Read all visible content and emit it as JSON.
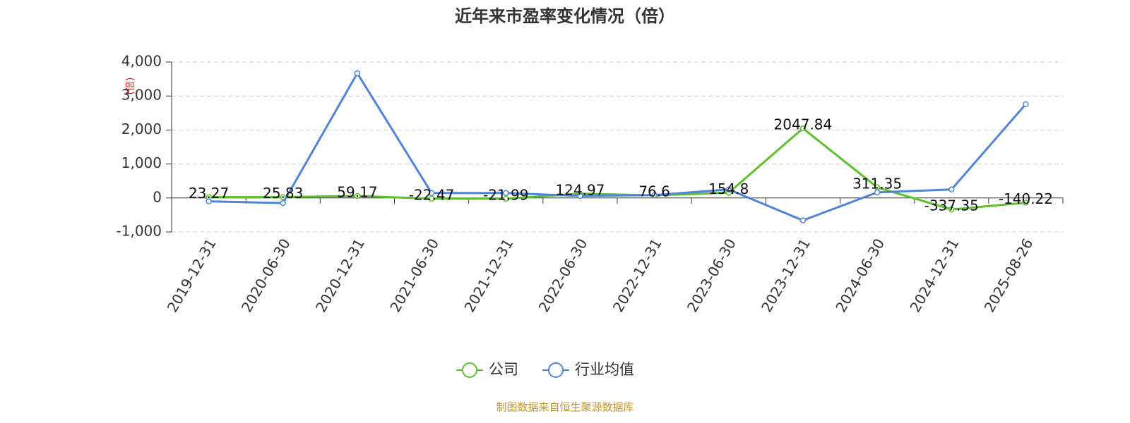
{
  "chart_data": {
    "type": "line",
    "title": "近年来市盈率变化情况（倍）",
    "y_label": "(倍)",
    "source": "制图数据来自恒生聚源数据库",
    "categories": [
      "2019-12-31",
      "2020-06-30",
      "2020-12-31",
      "2021-06-30",
      "2021-12-31",
      "2022-06-30",
      "2022-12-31",
      "2023-06-30",
      "2023-12-31",
      "2024-06-30",
      "2024-12-31",
      "2025-08-26"
    ],
    "series": [
      {
        "name": "公司",
        "color": "#5cc12a",
        "values": [
          23.27,
          25.83,
          59.17,
          -22.47,
          -21.99,
          124.97,
          76.6,
          154.8,
          2047.84,
          311.35,
          -337.35,
          -140.22
        ],
        "show_labels": true
      },
      {
        "name": "行业均值",
        "color": "#4f84dc",
        "values": [
          -100,
          -150,
          3670,
          145,
          145,
          60,
          85,
          250,
          -660,
          165,
          250,
          2760
        ],
        "show_labels": false
      }
    ],
    "ylim": [
      -1000,
      4000
    ],
    "yticks": [
      {
        "value": -1000,
        "label": "-1,000"
      },
      0,
      {
        "value": 1000,
        "label": "1,000"
      },
      {
        "value": 2000,
        "label": "2,000"
      },
      {
        "value": 3000,
        "label": "3,000"
      },
      {
        "value": 4000,
        "label": "4,000"
      }
    ],
    "grid": true
  }
}
